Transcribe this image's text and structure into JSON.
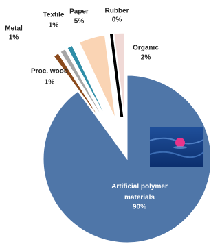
{
  "chart_data": {
    "type": "pie",
    "categories": [
      "Artificial polymer materials",
      "Proc. wood",
      "Metal",
      "Textile",
      "Paper",
      "Rubber",
      "Organic"
    ],
    "values": [
      90,
      1,
      1,
      1,
      5,
      0,
      2
    ],
    "value_labels": [
      "90%",
      "1%",
      "1%",
      "1%",
      "5%",
      "0%",
      "2%"
    ],
    "colors": [
      "#4f76a8",
      "#8b4a1c",
      "#a6a6a6",
      "#2f8ea8",
      "#fad4b4",
      "#000000",
      "#f0d9d6"
    ]
  }
}
